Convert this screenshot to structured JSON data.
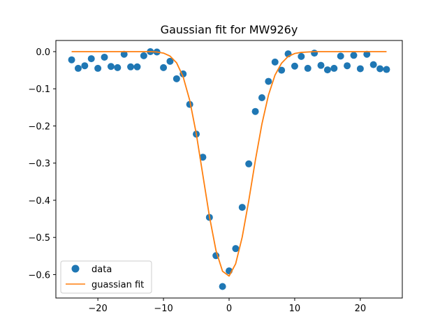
{
  "chart_data": {
    "type": "scatter",
    "title": "Gaussian fit for MW926y",
    "xlabel": "",
    "ylabel": "",
    "xlim": [
      -26.4,
      26.4
    ],
    "ylim": [
      -0.663,
      0.03
    ],
    "xticks": [
      -20,
      -10,
      0,
      10,
      20
    ],
    "xtick_labels": [
      "−20",
      "−10",
      "0",
      "10",
      "20"
    ],
    "yticks": [
      0.0,
      -0.1,
      -0.2,
      -0.3,
      -0.4,
      -0.5,
      -0.6
    ],
    "ytick_labels": [
      "0.0",
      "−0.1",
      "−0.2",
      "−0.3",
      "−0.4",
      "−0.5",
      "−0.6"
    ],
    "grid": false,
    "legend_position": "lower-left",
    "colors": {
      "data": "#1f77b4",
      "fit": "#ff7f0e"
    },
    "series": [
      {
        "name": "data",
        "kind": "scatter",
        "x": [
          -24,
          -23,
          -22,
          -21,
          -20,
          -19,
          -18,
          -17,
          -16,
          -15,
          -14,
          -13,
          -12,
          -11,
          -10,
          -9,
          -8,
          -7,
          -6,
          -5,
          -4,
          -3,
          -2,
          -1,
          0,
          1,
          2,
          3,
          4,
          5,
          6,
          7,
          8,
          9,
          10,
          11,
          12,
          13,
          14,
          15,
          16,
          17,
          18,
          19,
          20,
          21,
          22,
          23,
          24
        ],
        "y": [
          -0.022,
          -0.045,
          -0.038,
          -0.019,
          -0.045,
          -0.015,
          -0.04,
          -0.043,
          -0.007,
          -0.041,
          -0.041,
          -0.011,
          0.0,
          -0.001,
          -0.043,
          -0.026,
          -0.073,
          -0.06,
          -0.142,
          -0.222,
          -0.284,
          -0.446,
          -0.549,
          -0.632,
          -0.59,
          -0.53,
          -0.419,
          -0.302,
          -0.161,
          -0.124,
          -0.08,
          -0.028,
          -0.05,
          -0.006,
          -0.039,
          -0.013,
          -0.045,
          -0.004,
          -0.037,
          -0.049,
          -0.045,
          -0.012,
          -0.038,
          -0.01,
          -0.046,
          -0.007,
          -0.035,
          -0.046,
          -0.048
        ]
      },
      {
        "name": "guassian fit",
        "kind": "line",
        "x": [
          -24,
          -23,
          -22,
          -21,
          -20,
          -19,
          -18,
          -17,
          -16,
          -15,
          -14,
          -13,
          -12,
          -11,
          -10,
          -9,
          -8,
          -7,
          -6,
          -5,
          -4,
          -3,
          -2,
          -1,
          0,
          1,
          2,
          3,
          4,
          5,
          6,
          7,
          8,
          9,
          10,
          11,
          12,
          13,
          14,
          15,
          16,
          17,
          18,
          19,
          20,
          21,
          22,
          23,
          24
        ],
        "y": [
          0.0,
          0.0,
          0.0,
          0.0,
          0.0,
          0.0,
          0.0,
          0.0,
          0.0,
          0.0,
          0.0,
          0.0,
          0.0,
          -0.001,
          -0.004,
          -0.012,
          -0.03,
          -0.068,
          -0.131,
          -0.221,
          -0.332,
          -0.443,
          -0.535,
          -0.591,
          -0.604,
          -0.571,
          -0.499,
          -0.401,
          -0.293,
          -0.195,
          -0.117,
          -0.063,
          -0.031,
          -0.013,
          -0.005,
          -0.002,
          -0.001,
          0.0,
          0.0,
          0.0,
          0.0,
          0.0,
          0.0,
          0.0,
          0.0,
          0.0,
          0.0,
          0.0,
          0.0
        ]
      }
    ]
  }
}
